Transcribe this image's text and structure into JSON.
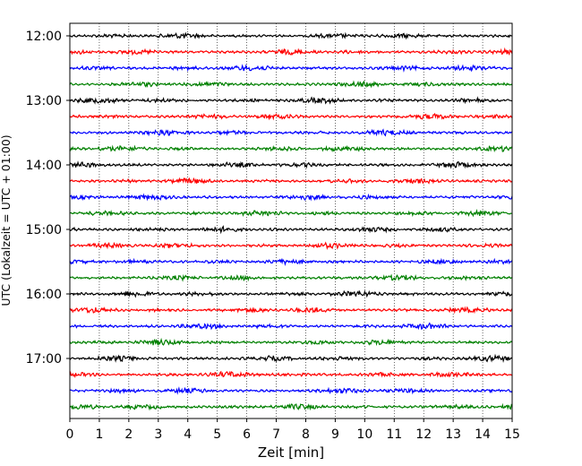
{
  "chart_data": {
    "type": "line",
    "title": "",
    "xlabel": "Zeit  [min]",
    "ylabel": "UTC (Lokalzeit = UTC + 01:00)",
    "xlim": [
      0,
      15
    ],
    "x_ticks": [
      "0",
      "1",
      "2",
      "3",
      "4",
      "5",
      "6",
      "7",
      "8",
      "9",
      "10",
      "11",
      "12",
      "13",
      "14",
      "15"
    ],
    "y_tick_labels": [
      "12:00",
      "13:00",
      "14:00",
      "15:00",
      "16:00",
      "17:00"
    ],
    "trace_interval_min": 15,
    "traces_start": "12:00",
    "trace_count": 24,
    "trace_colors": [
      "#000000",
      "#ff0000",
      "#0000ff",
      "#008000"
    ],
    "grid": "vertical dotted",
    "legend": "none"
  }
}
